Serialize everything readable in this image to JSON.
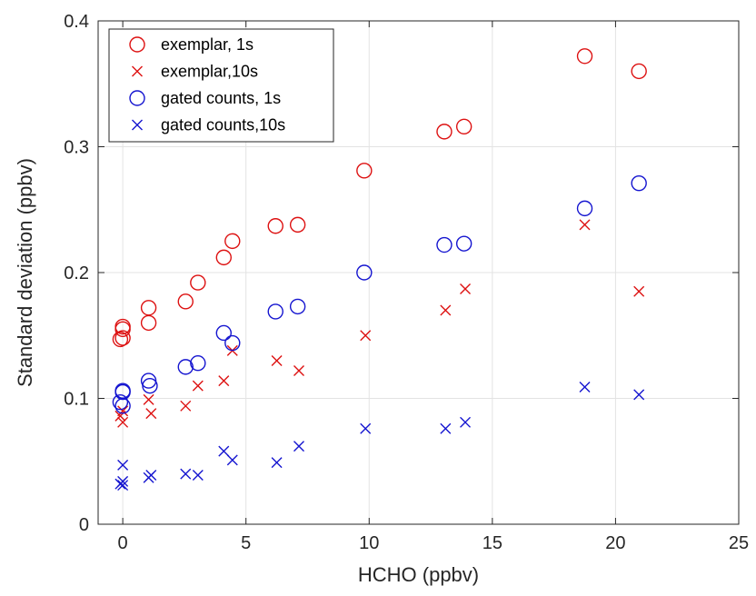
{
  "chart_data": {
    "type": "scatter",
    "xlabel": "HCHO (ppbv)",
    "ylabel": "Standard deviation (ppbv)",
    "xlim": [
      -1,
      25
    ],
    "ylim": [
      0,
      0.4
    ],
    "xticks": [
      0,
      5,
      10,
      15,
      20,
      25
    ],
    "yticks": [
      0,
      0.1,
      0.2,
      0.3,
      0.4
    ],
    "xtick_labels": [
      "0",
      "5",
      "10",
      "15",
      "20",
      "25"
    ],
    "ytick_labels": [
      "0",
      "0.1",
      "0.2",
      "0.3",
      "0.4"
    ],
    "grid": true,
    "legend_position": "top-left",
    "series": [
      {
        "name": "exemplar, 1s",
        "marker": "circle",
        "color": "#dd1111",
        "points": [
          [
            -0.1,
            0.147
          ],
          [
            0.0,
            0.148
          ],
          [
            0.0,
            0.155
          ],
          [
            0.0,
            0.157
          ],
          [
            1.05,
            0.16
          ],
          [
            1.05,
            0.172
          ],
          [
            2.55,
            0.177
          ],
          [
            3.05,
            0.192
          ],
          [
            4.1,
            0.212
          ],
          [
            4.45,
            0.225
          ],
          [
            6.2,
            0.237
          ],
          [
            7.1,
            0.238
          ],
          [
            9.8,
            0.281
          ],
          [
            13.05,
            0.312
          ],
          [
            13.85,
            0.316
          ],
          [
            18.75,
            0.372
          ],
          [
            20.95,
            0.36
          ]
        ]
      },
      {
        "name": "exemplar,10s",
        "marker": "x",
        "color": "#dd1111",
        "points": [
          [
            -0.1,
            0.086
          ],
          [
            0.0,
            0.081
          ],
          [
            0.0,
            0.09
          ],
          [
            1.05,
            0.099
          ],
          [
            1.15,
            0.088
          ],
          [
            2.55,
            0.094
          ],
          [
            3.05,
            0.11
          ],
          [
            4.1,
            0.114
          ],
          [
            4.45,
            0.138
          ],
          [
            6.25,
            0.13
          ],
          [
            7.15,
            0.122
          ],
          [
            9.85,
            0.15
          ],
          [
            13.1,
            0.17
          ],
          [
            13.9,
            0.187
          ],
          [
            18.75,
            0.238
          ],
          [
            20.95,
            0.185
          ]
        ]
      },
      {
        "name": "gated counts, 1s",
        "marker": "circle",
        "color": "#1515d0",
        "points": [
          [
            -0.1,
            0.097
          ],
          [
            0.0,
            0.094
          ],
          [
            0.0,
            0.105
          ],
          [
            0.0,
            0.106
          ],
          [
            1.05,
            0.114
          ],
          [
            1.1,
            0.11
          ],
          [
            2.55,
            0.125
          ],
          [
            3.05,
            0.128
          ],
          [
            4.1,
            0.152
          ],
          [
            4.45,
            0.144
          ],
          [
            6.2,
            0.169
          ],
          [
            7.1,
            0.173
          ],
          [
            9.8,
            0.2
          ],
          [
            13.05,
            0.222
          ],
          [
            13.85,
            0.223
          ],
          [
            18.75,
            0.251
          ],
          [
            20.95,
            0.271
          ]
        ]
      },
      {
        "name": "gated counts,10s",
        "marker": "x",
        "color": "#1515d0",
        "points": [
          [
            -0.1,
            0.032
          ],
          [
            0.0,
            0.031
          ],
          [
            0.0,
            0.034
          ],
          [
            0.0,
            0.047
          ],
          [
            1.05,
            0.037
          ],
          [
            1.15,
            0.039
          ],
          [
            2.55,
            0.04
          ],
          [
            3.05,
            0.039
          ],
          [
            4.1,
            0.058
          ],
          [
            4.45,
            0.051
          ],
          [
            6.25,
            0.049
          ],
          [
            7.15,
            0.062
          ],
          [
            9.85,
            0.076
          ],
          [
            13.1,
            0.076
          ],
          [
            13.9,
            0.081
          ],
          [
            18.75,
            0.109
          ],
          [
            20.95,
            0.103
          ]
        ]
      }
    ]
  }
}
